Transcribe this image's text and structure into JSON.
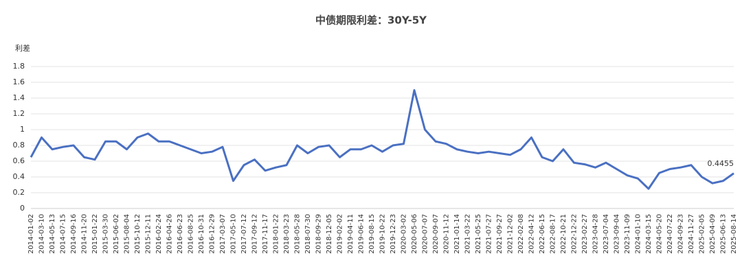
{
  "chart_data": {
    "type": "line",
    "title": "中债期限利差：30Y-5Y",
    "y_label": "利差",
    "categories": [
      "2014-01-02",
      "2014-03-10",
      "2014-05-13",
      "2014-07-15",
      "2014-09-16",
      "2014-11-20",
      "2015-01-22",
      "2015-03-30",
      "2015-06-02",
      "2015-08-04",
      "2015-10-12",
      "2015-12-11",
      "2016-02-24",
      "2016-04-26",
      "2016-06-23",
      "2016-08-25",
      "2016-10-31",
      "2016-12-29",
      "2017-03-07",
      "2017-05-10",
      "2017-07-12",
      "2017-09-12",
      "2017-11-17",
      "2018-01-22",
      "2018-03-23",
      "2018-05-28",
      "2018-07-30",
      "2018-09-29",
      "2018-12-05",
      "2019-02-02",
      "2019-04-11",
      "2019-06-14",
      "2019-08-15",
      "2019-10-22",
      "2019-12-23",
      "2020-03-02",
      "2020-05-06",
      "2020-07-07",
      "2020-09-07",
      "2020-11-12",
      "2021-01-14",
      "2021-03-22",
      "2021-05-25",
      "2021-07-27",
      "2021-09-27",
      "2021-12-02",
      "2022-02-08",
      "2022-04-12",
      "2022-06-15",
      "2022-08-17",
      "2022-10-21",
      "2022-12-22",
      "2023-02-27",
      "2023-04-28",
      "2023-07-04",
      "2023-09-04",
      "2023-11-09",
      "2024-01-10",
      "2024-03-15",
      "2024-05-20",
      "2024-07-22",
      "2024-09-23",
      "2024-11-27",
      "2025-02-05",
      "2025-04-09",
      "2025-06-13",
      "2025-08-14"
    ],
    "values": [
      0.65,
      0.9,
      0.75,
      0.78,
      0.8,
      0.65,
      0.62,
      0.85,
      0.85,
      0.75,
      0.9,
      0.95,
      0.85,
      0.85,
      0.8,
      0.75,
      0.7,
      0.72,
      0.78,
      0.35,
      0.55,
      0.62,
      0.48,
      0.52,
      0.55,
      0.8,
      0.7,
      0.78,
      0.8,
      0.65,
      0.75,
      0.75,
      0.8,
      0.72,
      0.8,
      0.82,
      1.5,
      1.0,
      0.85,
      0.82,
      0.75,
      0.72,
      0.7,
      0.72,
      0.7,
      0.68,
      0.75,
      0.9,
      0.65,
      0.6,
      0.75,
      0.58,
      0.56,
      0.52,
      0.58,
      0.5,
      0.42,
      0.38,
      0.25,
      0.45,
      0.5,
      0.52,
      0.55,
      0.4,
      0.32,
      0.35,
      0.4455
    ],
    "color": "#4a70c2",
    "ylim": [
      0,
      1.8
    ],
    "yticks": [
      0,
      0.2,
      0.4,
      0.6,
      0.8,
      1,
      1.2,
      1.4,
      1.6,
      1.8
    ],
    "grid": true
  }
}
